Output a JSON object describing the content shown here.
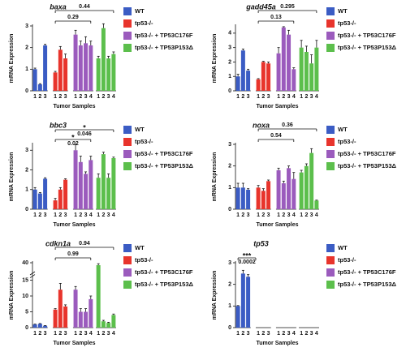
{
  "chart_data": [
    {
      "type": "bar",
      "title": "baxa",
      "ylabel": "mRNA Expression",
      "xlabel": "Tumor Samples",
      "ylim": [
        0,
        3
      ],
      "yticks": [
        0,
        1,
        2,
        3
      ],
      "series": [
        {
          "name": "WT",
          "color": "#3b5cc4",
          "categories": [
            "1",
            "2",
            "3"
          ],
          "values": [
            1.0,
            0.3,
            2.1
          ],
          "errors": [
            0.05,
            0.03,
            0.05
          ]
        },
        {
          "name": "tp53-/-",
          "color": "#e8342c",
          "categories": [
            "1",
            "2",
            "3"
          ],
          "values": [
            0.85,
            1.9,
            1.5
          ],
          "errors": [
            0.05,
            0.15,
            0.2
          ]
        },
        {
          "name": "tp53-/- + TP53C176F",
          "color": "#9b5bbd",
          "categories": [
            "1",
            "2",
            "3",
            "4"
          ],
          "values": [
            2.6,
            2.1,
            2.2,
            2.1
          ],
          "errors": [
            0.2,
            0.2,
            0.3,
            0.2
          ]
        },
        {
          "name": "tp53-/- + TP53P153Δ",
          "color": "#5cbf4c",
          "categories": [
            "1",
            "2",
            "3",
            "4"
          ],
          "values": [
            1.5,
            2.9,
            1.5,
            1.7
          ],
          "errors": [
            0.1,
            0.2,
            0.1,
            0.1
          ]
        }
      ],
      "annotations": [
        {
          "text": "0.29",
          "groups": [
            1,
            2
          ]
        },
        {
          "text": "0.44",
          "groups": [
            1,
            3
          ]
        }
      ]
    },
    {
      "type": "bar",
      "title": "gadd45a",
      "ylabel": "mRNA Expression",
      "xlabel": "Tumor Samples",
      "ylim": [
        0,
        4.5
      ],
      "yticks": [
        0,
        1,
        2,
        3,
        4
      ],
      "series": [
        {
          "name": "WT",
          "color": "#3b5cc4",
          "categories": [
            "1",
            "2",
            "3"
          ],
          "values": [
            1.0,
            2.8,
            1.4
          ],
          "errors": [
            0.15,
            0.1,
            0.1
          ]
        },
        {
          "name": "tp53-/-",
          "color": "#e8342c",
          "categories": [
            "1",
            "2",
            "3"
          ],
          "values": [
            0.8,
            2.0,
            1.9
          ],
          "errors": [
            0.05,
            0.05,
            0.1
          ]
        },
        {
          "name": "tp53-/- + TP53C176F",
          "color": "#9b5bbd",
          "categories": [
            "1",
            "2",
            "3",
            "4"
          ],
          "values": [
            2.6,
            4.4,
            3.9,
            1.5
          ],
          "errors": [
            0.4,
            0.05,
            0.3,
            0.1
          ]
        },
        {
          "name": "tp53-/- + TP53P153Δ",
          "color": "#5cbf4c",
          "categories": [
            "1",
            "2",
            "3",
            "4"
          ],
          "values": [
            3.0,
            2.7,
            1.9,
            3.0
          ],
          "errors": [
            0.5,
            0.4,
            0.6,
            0.5
          ]
        }
      ],
      "annotations": [
        {
          "text": "0.13",
          "groups": [
            1,
            2
          ]
        },
        {
          "text": "0.295",
          "groups": [
            1,
            3
          ]
        }
      ]
    },
    {
      "type": "bar",
      "title": "bbc3",
      "ylabel": "mRNA Expression",
      "xlabel": "Tumor Samples",
      "ylim": [
        0,
        3.3
      ],
      "yticks": [
        0,
        1,
        2,
        3
      ],
      "series": [
        {
          "name": "WT",
          "color": "#3b5cc4",
          "categories": [
            "1",
            "2",
            "3"
          ],
          "values": [
            1.0,
            0.8,
            1.55
          ],
          "errors": [
            0.1,
            0.05,
            0.05
          ]
        },
        {
          "name": "tp53-/-",
          "color": "#e8342c",
          "categories": [
            "1",
            "2",
            "3"
          ],
          "values": [
            0.45,
            1.0,
            1.5
          ],
          "errors": [
            0.1,
            0.1,
            0.05
          ]
        },
        {
          "name": "tp53-/- + TP53C176F",
          "color": "#9b5bbd",
          "categories": [
            "1",
            "2",
            "3",
            "4"
          ],
          "values": [
            3.0,
            2.4,
            1.8,
            2.5
          ],
          "errors": [
            0.3,
            0.3,
            0.1,
            0.2
          ]
        },
        {
          "name": "tp53-/- + TP53P153Δ",
          "color": "#5cbf4c",
          "categories": [
            "1",
            "2",
            "3",
            "4"
          ],
          "values": [
            1.6,
            2.8,
            1.6,
            2.6
          ],
          "errors": [
            0.2,
            0.1,
            0.2,
            0.05
          ]
        }
      ],
      "annotations": [
        {
          "stars": "*",
          "text": "0.02",
          "groups": [
            1,
            2
          ]
        },
        {
          "stars": "*",
          "text": "0.046",
          "groups": [
            1,
            3
          ]
        }
      ]
    },
    {
      "type": "bar",
      "title": "noxa",
      "ylabel": "mRNA Expression",
      "xlabel": "Tumor Samples",
      "ylim": [
        0,
        3
      ],
      "yticks": [
        0,
        1,
        2,
        3
      ],
      "series": [
        {
          "name": "WT",
          "color": "#3b5cc4",
          "categories": [
            "1",
            "2",
            "3"
          ],
          "values": [
            1.0,
            1.0,
            0.9
          ],
          "errors": [
            0.2,
            0.2,
            0.05
          ]
        },
        {
          "name": "tp53-/-",
          "color": "#e8342c",
          "categories": [
            "1",
            "2",
            "3"
          ],
          "values": [
            1.0,
            0.85,
            1.3
          ],
          "errors": [
            0.1,
            0.1,
            0.05
          ]
        },
        {
          "name": "tp53-/- + TP53C176F",
          "color": "#9b5bbd",
          "categories": [
            "1",
            "2",
            "3",
            "4"
          ],
          "values": [
            1.8,
            1.2,
            1.9,
            1.4
          ],
          "errors": [
            0.1,
            0.1,
            0.1,
            0.3
          ]
        },
        {
          "name": "tp53-/- + TP53P153Δ",
          "color": "#5cbf4c",
          "categories": [
            "1",
            "2",
            "3",
            "4"
          ],
          "values": [
            1.7,
            2.0,
            2.6,
            0.4
          ],
          "errors": [
            0.1,
            0.1,
            0.2,
            0.02
          ]
        }
      ],
      "annotations": [
        {
          "text": "0.54",
          "groups": [
            1,
            2
          ]
        },
        {
          "text": "0.36",
          "groups": [
            1,
            3
          ]
        }
      ]
    },
    {
      "type": "bar",
      "title": "cdkn1a",
      "ylabel": "mRNA Expression",
      "xlabel": "Tumor Samples",
      "ylim": [
        0,
        40
      ],
      "yticks": [
        0,
        5,
        10,
        15,
        40
      ],
      "ybreak": [
        16,
        38
      ],
      "series": [
        {
          "name": "WT",
          "color": "#3b5cc4",
          "categories": [
            "1",
            "2",
            "3"
          ],
          "values": [
            1.0,
            1.2,
            0.6
          ],
          "errors": [
            0.1,
            0.1,
            0.05
          ]
        },
        {
          "name": "tp53-/-",
          "color": "#e8342c",
          "categories": [
            "1",
            "2",
            "3"
          ],
          "values": [
            5.7,
            12,
            6.7
          ],
          "errors": [
            0.3,
            2,
            0.5
          ]
        },
        {
          "name": "tp53-/- + TP53C176F",
          "color": "#9b5bbd",
          "categories": [
            "1",
            "2",
            "3",
            "4"
          ],
          "values": [
            12,
            5,
            5,
            9
          ],
          "errors": [
            1,
            1,
            1,
            1
          ]
        },
        {
          "name": "tp53-/- + TP53P153Δ",
          "color": "#5cbf4c",
          "categories": [
            "1",
            "2",
            "3",
            "4"
          ],
          "values": [
            39.5,
            2,
            1.5,
            4
          ],
          "errors": [
            0.3,
            0.3,
            0.2,
            0.3
          ]
        }
      ],
      "annotations": [
        {
          "text": "0.99",
          "groups": [
            1,
            2
          ]
        },
        {
          "text": "0.94",
          "groups": [
            1,
            3
          ]
        }
      ]
    },
    {
      "type": "bar",
      "title": "tp53",
      "ylabel": "mRNA Expression",
      "xlabel": "Tumor Samples",
      "ylim": [
        0,
        3
      ],
      "yticks": [
        0,
        1,
        2,
        3
      ],
      "series": [
        {
          "name": "WT",
          "color": "#3b5cc4",
          "categories": [
            "1",
            "2",
            "3"
          ],
          "values": [
            1.0,
            2.5,
            2.35
          ],
          "errors": [
            0.02,
            0.15,
            0.1
          ]
        },
        {
          "name": "tp53-/-",
          "color": "#e8342c",
          "categories": [
            "1",
            "2",
            "3"
          ],
          "values": [
            0,
            0,
            0
          ],
          "errors": [
            0,
            0,
            0
          ]
        },
        {
          "name": "tp53-/- + TP53C176F",
          "color": "#9b5bbd",
          "categories": [
            "1",
            "2",
            "3",
            "4"
          ],
          "values": [
            0,
            0,
            0,
            0
          ],
          "errors": [
            0,
            0,
            0,
            0
          ]
        },
        {
          "name": "tp53-/- + TP53P153Δ",
          "color": "#5cbf4c",
          "categories": [
            "1",
            "2",
            "3",
            "4"
          ],
          "values": [
            0,
            0,
            0,
            0
          ],
          "errors": [
            0,
            0,
            0,
            0
          ]
        }
      ],
      "annotations": [
        {
          "stars": "***",
          "text": "0.0002",
          "groups": [
            0,
            0
          ]
        }
      ]
    }
  ]
}
